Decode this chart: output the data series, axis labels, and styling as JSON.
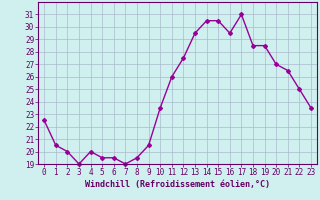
{
  "x": [
    0,
    1,
    2,
    3,
    4,
    5,
    6,
    7,
    8,
    9,
    10,
    11,
    12,
    13,
    14,
    15,
    16,
    17,
    18,
    19,
    20,
    21,
    22,
    23
  ],
  "y": [
    22.5,
    20.5,
    20.0,
    19.0,
    20.0,
    19.5,
    19.5,
    19.0,
    19.5,
    20.5,
    23.5,
    26.0,
    27.5,
    29.5,
    30.5,
    30.5,
    29.5,
    31.0,
    28.5,
    28.5,
    27.0,
    26.5,
    25.0,
    23.5
  ],
  "line_color": "#990099",
  "marker": "D",
  "marker_size": 2,
  "linewidth": 1.0,
  "xlabel": "Windchill (Refroidissement éolien,°C)",
  "xlabel_fontsize": 6,
  "ylim": [
    19,
    32
  ],
  "xlim": [
    -0.5,
    23.5
  ],
  "yticks": [
    19,
    20,
    21,
    22,
    23,
    24,
    25,
    26,
    27,
    28,
    29,
    30,
    31
  ],
  "xticks": [
    0,
    1,
    2,
    3,
    4,
    5,
    6,
    7,
    8,
    9,
    10,
    11,
    12,
    13,
    14,
    15,
    16,
    17,
    18,
    19,
    20,
    21,
    22,
    23
  ],
  "background_color": "#cff0ee",
  "grid_color": "#aab8cc",
  "tick_fontsize": 5.5,
  "spine_color": "#660066",
  "text_color": "#660066"
}
